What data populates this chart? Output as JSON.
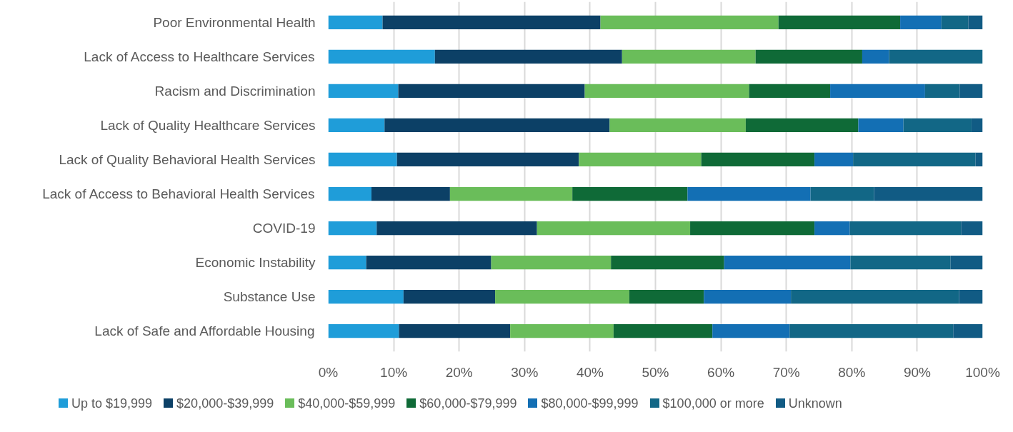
{
  "chart_data": {
    "type": "bar",
    "orientation": "horizontal",
    "stacked": true,
    "categories": [
      "Poor Environmental Health",
      "Lack of Access to Healthcare Services",
      "Racism and Discrimination",
      "Lack of Quality Healthcare Services",
      "Lack of Quality Behavioral Health Services",
      "Lack of Access to Behavioral Health Services",
      "COVID-19",
      "Economic Instability",
      "Substance Use",
      "Lack of Safe and Affordable Housing"
    ],
    "series": [
      {
        "name": "Up to $19,999",
        "color": "#1f9dd9",
        "values": [
          8.3,
          16.3,
          10.7,
          8.6,
          10.5,
          6.6,
          7.4,
          5.8,
          11.5,
          10.8
        ]
      },
      {
        "name": "$20,000-$39,999",
        "color": "#0c4066",
        "values": [
          33.3,
          28.6,
          28.5,
          34.4,
          27.8,
          12.0,
          24.5,
          19.1,
          14.0,
          17.0
        ]
      },
      {
        "name": "$40,000-$59,999",
        "color": "#6abd5a",
        "values": [
          27.2,
          20.4,
          25.1,
          20.8,
          18.7,
          18.7,
          23.4,
          18.3,
          20.5,
          15.8
        ]
      },
      {
        "name": "$60,000-$79,999",
        "color": "#0f6a37",
        "values": [
          18.6,
          16.3,
          12.4,
          17.2,
          17.3,
          17.6,
          19.0,
          17.3,
          11.4,
          15.1
        ]
      },
      {
        "name": "$80,000-$99,999",
        "color": "#136fb4",
        "values": [
          6.3,
          4.1,
          14.5,
          6.9,
          5.9,
          18.8,
          5.4,
          19.3,
          13.3,
          11.8
        ]
      },
      {
        "name": "$100,000 or more",
        "color": "#126786",
        "values": [
          4.1,
          14.3,
          5.3,
          10.4,
          18.7,
          9.7,
          17.0,
          15.3,
          25.7,
          25.0
        ]
      },
      {
        "name": "Unknown",
        "color": "#115b84",
        "values": [
          2.2,
          0,
          3.5,
          1.7,
          1.1,
          16.6,
          3.3,
          4.9,
          3.6,
          4.5
        ]
      }
    ],
    "xlim": [
      0,
      100
    ],
    "xticks": [
      {
        "value": 0,
        "label": "0%"
      },
      {
        "value": 10,
        "label": "10%"
      },
      {
        "value": 20,
        "label": "20%"
      },
      {
        "value": 30,
        "label": "30%"
      },
      {
        "value": 40,
        "label": "40%"
      },
      {
        "value": 50,
        "label": "50%"
      },
      {
        "value": 60,
        "label": "60%"
      },
      {
        "value": 70,
        "label": "70%"
      },
      {
        "value": 80,
        "label": "80%"
      },
      {
        "value": 90,
        "label": "90%"
      },
      {
        "value": 100,
        "label": "100%"
      }
    ],
    "grid": "x",
    "legend": "bottom"
  }
}
